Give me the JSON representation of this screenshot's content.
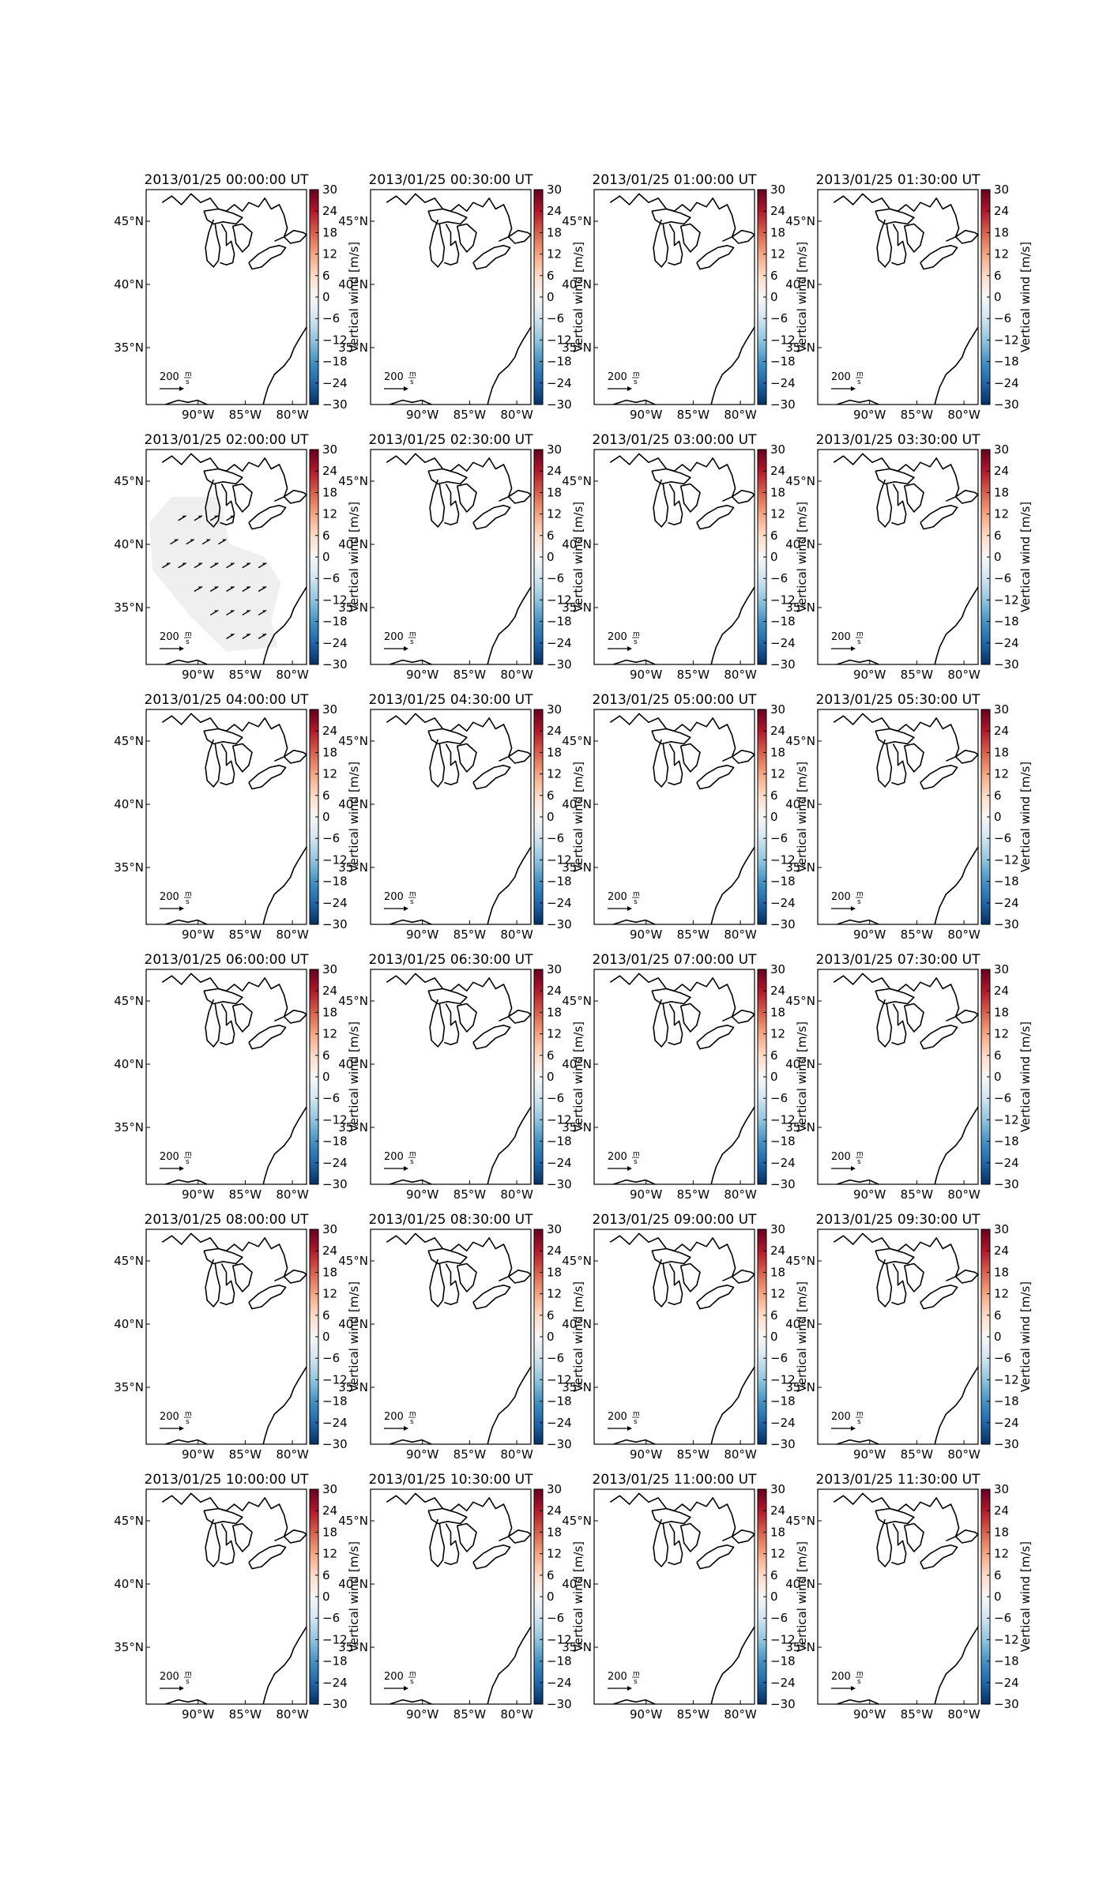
{
  "chart_data": {
    "type": "map-panels",
    "layout": {
      "rows": 6,
      "cols": 4
    },
    "panels": [
      {
        "title": "2013/01/25 00:00:00 UT",
        "wind_vectors": false
      },
      {
        "title": "2013/01/25 00:30:00 UT",
        "wind_vectors": false
      },
      {
        "title": "2013/01/25 01:00:00 UT",
        "wind_vectors": false
      },
      {
        "title": "2013/01/25 01:30:00 UT",
        "wind_vectors": false
      },
      {
        "title": "2013/01/25 02:00:00 UT",
        "wind_vectors": true
      },
      {
        "title": "2013/01/25 02:30:00 UT",
        "wind_vectors": false
      },
      {
        "title": "2013/01/25 03:00:00 UT",
        "wind_vectors": false
      },
      {
        "title": "2013/01/25 03:30:00 UT",
        "wind_vectors": false
      },
      {
        "title": "2013/01/25 04:00:00 UT",
        "wind_vectors": false
      },
      {
        "title": "2013/01/25 04:30:00 UT",
        "wind_vectors": false
      },
      {
        "title": "2013/01/25 05:00:00 UT",
        "wind_vectors": false
      },
      {
        "title": "2013/01/25 05:30:00 UT",
        "wind_vectors": false
      },
      {
        "title": "2013/01/25 06:00:00 UT",
        "wind_vectors": false
      },
      {
        "title": "2013/01/25 06:30:00 UT",
        "wind_vectors": false
      },
      {
        "title": "2013/01/25 07:00:00 UT",
        "wind_vectors": false
      },
      {
        "title": "2013/01/25 07:30:00 UT",
        "wind_vectors": false
      },
      {
        "title": "2013/01/25 08:00:00 UT",
        "wind_vectors": false
      },
      {
        "title": "2013/01/25 08:30:00 UT",
        "wind_vectors": false
      },
      {
        "title": "2013/01/25 09:00:00 UT",
        "wind_vectors": false
      },
      {
        "title": "2013/01/25 09:30:00 UT",
        "wind_vectors": false
      },
      {
        "title": "2013/01/25 10:00:00 UT",
        "wind_vectors": false
      },
      {
        "title": "2013/01/25 10:30:00 UT",
        "wind_vectors": false
      },
      {
        "title": "2013/01/25 11:00:00 UT",
        "wind_vectors": false
      },
      {
        "title": "2013/01/25 11:30:00 UT",
        "wind_vectors": false
      }
    ],
    "map": {
      "xlim_lon": [
        -95.5,
        -78.5
      ],
      "ylim_lat": [
        30.5,
        47.5
      ],
      "lon_ticks": [
        -90,
        -85,
        -80
      ],
      "lon_tick_labels": [
        "90°W",
        "85°W",
        "80°W"
      ],
      "lat_ticks": [
        35,
        40,
        45
      ],
      "lat_tick_labels": [
        "35°N",
        "40°N",
        "45°N"
      ]
    },
    "colorbar": {
      "label": "Vertical wind [m/s]",
      "range": [
        -30,
        30
      ],
      "ticks": [
        30,
        24,
        18,
        12,
        6,
        0,
        -6,
        -12,
        -18,
        -24,
        -30
      ],
      "tick_labels": [
        "30",
        "24",
        "18",
        "12",
        "6",
        "0",
        "−6",
        "−12",
        "−18",
        "−24",
        "−30"
      ],
      "colormap": "RdBu_r",
      "colors": [
        "#053061",
        "#2166ac",
        "#4393c3",
        "#92c5de",
        "#d1e5f0",
        "#f7f7f7",
        "#fddbc7",
        "#f4a582",
        "#d6604d",
        "#b2182b",
        "#67001f"
      ]
    },
    "reference_arrow": {
      "value": "200",
      "unit_numerator": "m",
      "unit_denominator": "s"
    },
    "wind_vector_color": "#000000",
    "mask_color": "#efefef"
  }
}
